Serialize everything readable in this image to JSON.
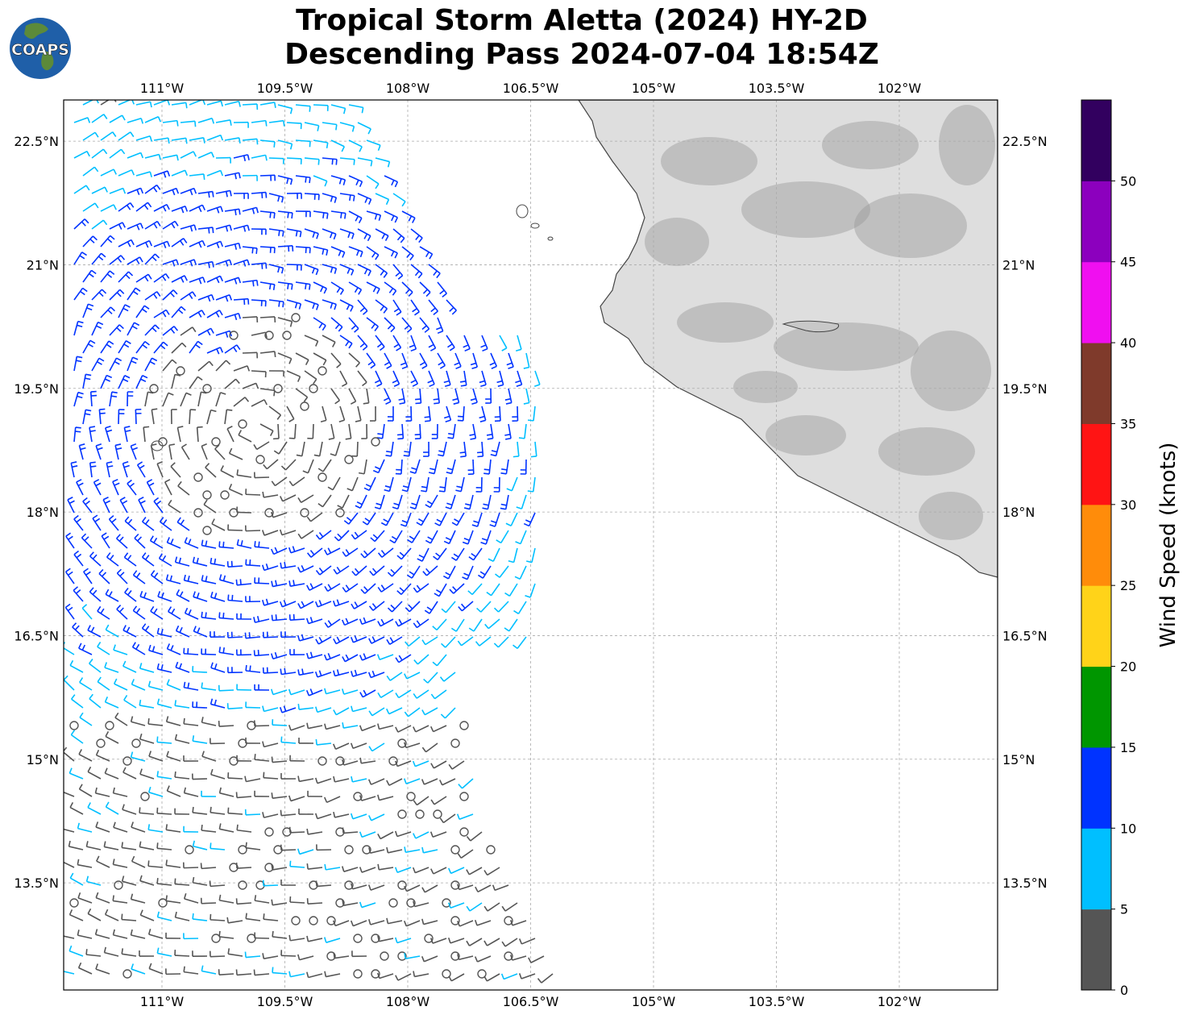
{
  "header": {
    "title_line1": "Tropical Storm Aletta (2024) HY-2D",
    "title_line2": "Descending Pass 2024-07-04 18:54Z",
    "logo_text": "COAPS"
  },
  "map": {
    "lon_ticks": [
      "111°W",
      "109.5°W",
      "108°W",
      "106.5°W",
      "105°W",
      "103.5°W",
      "102°W"
    ],
    "lat_ticks": [
      "22.5°N",
      "21°N",
      "19.5°N",
      "18°N",
      "16.5°N",
      "15°N",
      "13.5°N"
    ],
    "lon_range": [
      -112.2,
      -100.8
    ],
    "lat_range": [
      12.2,
      23.0
    ],
    "gridlines": true,
    "land_shading": "gray elevation (terrain)",
    "swath_side": "west"
  },
  "colorbar": {
    "title": "Wind Speed (knots)",
    "ticks": [
      "0",
      "5",
      "10",
      "15",
      "20",
      "25",
      "30",
      "35",
      "40",
      "45",
      "50"
    ],
    "bins": [
      {
        "min": 0,
        "max": 5,
        "color": "#555555"
      },
      {
        "min": 5,
        "max": 10,
        "color": "#00bfff"
      },
      {
        "min": 10,
        "max": 15,
        "color": "#0033ff"
      },
      {
        "min": 15,
        "max": 20,
        "color": "#009600"
      },
      {
        "min": 20,
        "max": 25,
        "color": "#ffd319"
      },
      {
        "min": 25,
        "max": 30,
        "color": "#ff8c0a"
      },
      {
        "min": 30,
        "max": 35,
        "color": "#ff1414"
      },
      {
        "min": 35,
        "max": 40,
        "color": "#7f3a2b"
      },
      {
        "min": 40,
        "max": 45,
        "color": "#f00ff0"
      },
      {
        "min": 45,
        "max": 50,
        "color": "#8c00be"
      },
      {
        "min": 50,
        "max": 55,
        "color": "#32005f"
      }
    ]
  }
}
